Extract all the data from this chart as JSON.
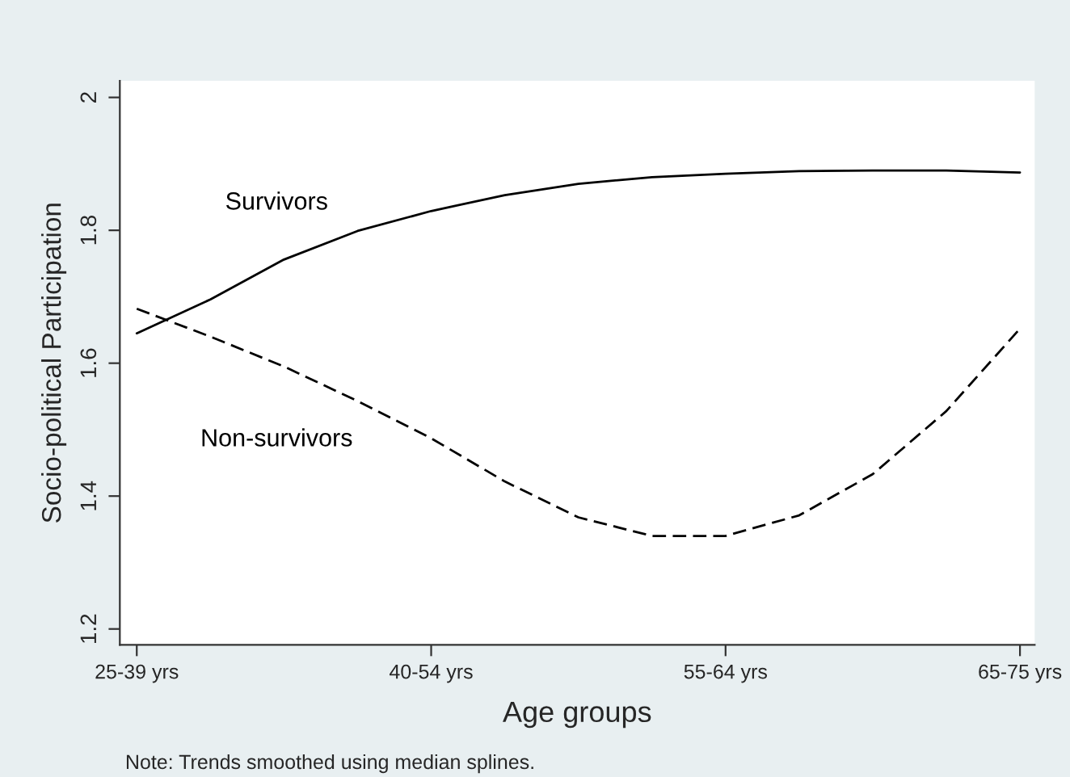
{
  "chart_data": {
    "type": "line",
    "xlabel": "Age groups",
    "ylabel": "Socio-political Participation",
    "annotations": [
      "Note: Trends smoothed using median splines."
    ],
    "categories": [
      "25-39 yrs",
      null,
      null,
      null,
      "40-54 yrs",
      null,
      null,
      null,
      "55-64 yrs",
      null,
      null,
      null,
      "65-75 yrs"
    ],
    "ylim": [
      1.176,
      2.025
    ],
    "yticks": [
      1.2,
      1.4,
      1.6,
      1.8,
      2
    ],
    "grid": false,
    "legend": false,
    "marker": "none",
    "series": [
      {
        "name": "Survivors",
        "color": "#000000",
        "line_style": "solid",
        "values": [
          1.645,
          1.696,
          1.756,
          1.799,
          1.829,
          1.853,
          1.87,
          1.88,
          1.885,
          1.889,
          1.89,
          1.89,
          1.887
        ]
      },
      {
        "name": "Non-survivors",
        "color": "#000000",
        "line_style": "dashed",
        "values": [
          1.682,
          1.64,
          1.595,
          1.543,
          1.487,
          1.422,
          1.368,
          1.34,
          1.34,
          1.371,
          1.433,
          1.528,
          1.652
        ]
      }
    ]
  }
}
